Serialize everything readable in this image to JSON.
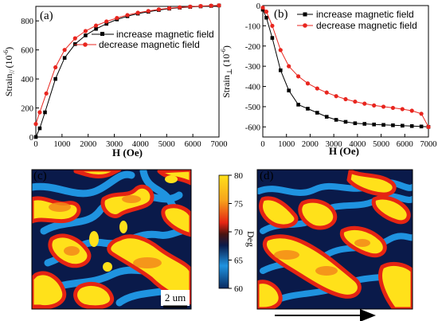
{
  "chart_data": [
    {
      "type": "line",
      "panel_label": "(a)",
      "xlabel": "H (Oe)",
      "ylabel": "Strain",
      "ylabel_sub": "//",
      "ylabel_unit": "(10",
      "ylabel_exp": "-6",
      "ylabel_close": ")",
      "xlim": [
        0,
        7000
      ],
      "ylim": [
        0,
        900
      ],
      "xticks": [
        "0",
        "1000",
        "2000",
        "3000",
        "4000",
        "5000",
        "6000",
        "7000"
      ],
      "xtick_values": [
        0,
        1000,
        2000,
        3000,
        4000,
        5000,
        6000,
        7000
      ],
      "yticks": [
        "0",
        "200",
        "400",
        "600",
        "800"
      ],
      "ytick_values": [
        0,
        200,
        400,
        600,
        800
      ],
      "legend_position": "top-right",
      "series": [
        {
          "name": "increase magnetic field",
          "color": "#000000",
          "marker": "square",
          "x": [
            0,
            150,
            350,
            750,
            1100,
            1500,
            1900,
            2300,
            2700,
            3100,
            3500,
            3900,
            4300,
            4700,
            5100,
            5500,
            5900,
            6300,
            6700,
            7000
          ],
          "y": [
            0,
            60,
            170,
            400,
            545,
            640,
            700,
            745,
            780,
            810,
            832,
            850,
            863,
            875,
            884,
            891,
            896,
            900,
            903,
            906
          ]
        },
        {
          "name": "decrease magnetic field",
          "color": "#e8261f",
          "marker": "circle",
          "x": [
            0,
            150,
            400,
            750,
            1100,
            1500,
            1900,
            2300,
            2700,
            3100,
            3500,
            3900,
            4300,
            4700,
            5100,
            5500,
            5900,
            6300,
            6700,
            7000
          ],
          "y": [
            90,
            170,
            300,
            480,
            600,
            680,
            730,
            768,
            796,
            820,
            840,
            856,
            868,
            879,
            887,
            893,
            898,
            902,
            905,
            907
          ]
        }
      ]
    },
    {
      "type": "line",
      "panel_label": "(b)",
      "xlabel": "H (Oe)",
      "ylabel": "Strain",
      "ylabel_sub": "⊥",
      "ylabel_unit": "(10",
      "ylabel_exp": "-6",
      "ylabel_close": ")",
      "xlim": [
        0,
        7000
      ],
      "ylim": [
        -650,
        0
      ],
      "xticks": [
        "0",
        "1000",
        "2000",
        "3000",
        "4000",
        "5000",
        "6000",
        "7000"
      ],
      "xtick_values": [
        0,
        1000,
        2000,
        3000,
        4000,
        5000,
        6000,
        7000
      ],
      "yticks": [
        "0",
        "-100",
        "-200",
        "-300",
        "-400",
        "-500",
        "-600"
      ],
      "ytick_values": [
        0,
        -100,
        -200,
        -300,
        -400,
        -500,
        -600
      ],
      "legend_position": "top-right",
      "series": [
        {
          "name": "increase magnetic field",
          "color": "#000000",
          "marker": "square",
          "x": [
            0,
            150,
            400,
            750,
            1100,
            1500,
            1900,
            2300,
            2700,
            3100,
            3500,
            3900,
            4300,
            4700,
            5100,
            5500,
            5900,
            6300,
            6700,
            7000
          ],
          "y": [
            -20,
            -60,
            -160,
            -320,
            -420,
            -490,
            -510,
            -530,
            -550,
            -565,
            -575,
            -582,
            -585,
            -588,
            -590,
            -592,
            -594,
            -596,
            -598,
            -600
          ]
        },
        {
          "name": "decrease magnetic field",
          "color": "#e8261f",
          "marker": "circle",
          "x": [
            0,
            150,
            400,
            750,
            1100,
            1500,
            1900,
            2300,
            2700,
            3100,
            3500,
            3900,
            4300,
            4700,
            5100,
            5500,
            5900,
            6300,
            6700,
            7000
          ],
          "y": [
            -10,
            -30,
            -100,
            -220,
            -300,
            -350,
            -385,
            -410,
            -430,
            -448,
            -463,
            -475,
            -485,
            -494,
            -500,
            -506,
            -512,
            -520,
            -535,
            -600
          ]
        }
      ]
    },
    {
      "type": "heatmap",
      "panel_label": "(c)",
      "scalebar_label": "2 um",
      "colorbar": {
        "label": "Deg",
        "ticks": [
          "80",
          "75",
          "70",
          "65",
          "60"
        ],
        "tick_values": [
          80,
          75,
          70,
          65,
          60
        ],
        "range": [
          60,
          80
        ]
      }
    },
    {
      "type": "heatmap",
      "panel_label": "(d)",
      "arrow": "right"
    }
  ],
  "colors": {
    "navy": "#0a1a4a",
    "blue": "#1f93e0",
    "red": "#e52413",
    "orange": "#f48a1a",
    "yellow": "#ffe11a"
  }
}
